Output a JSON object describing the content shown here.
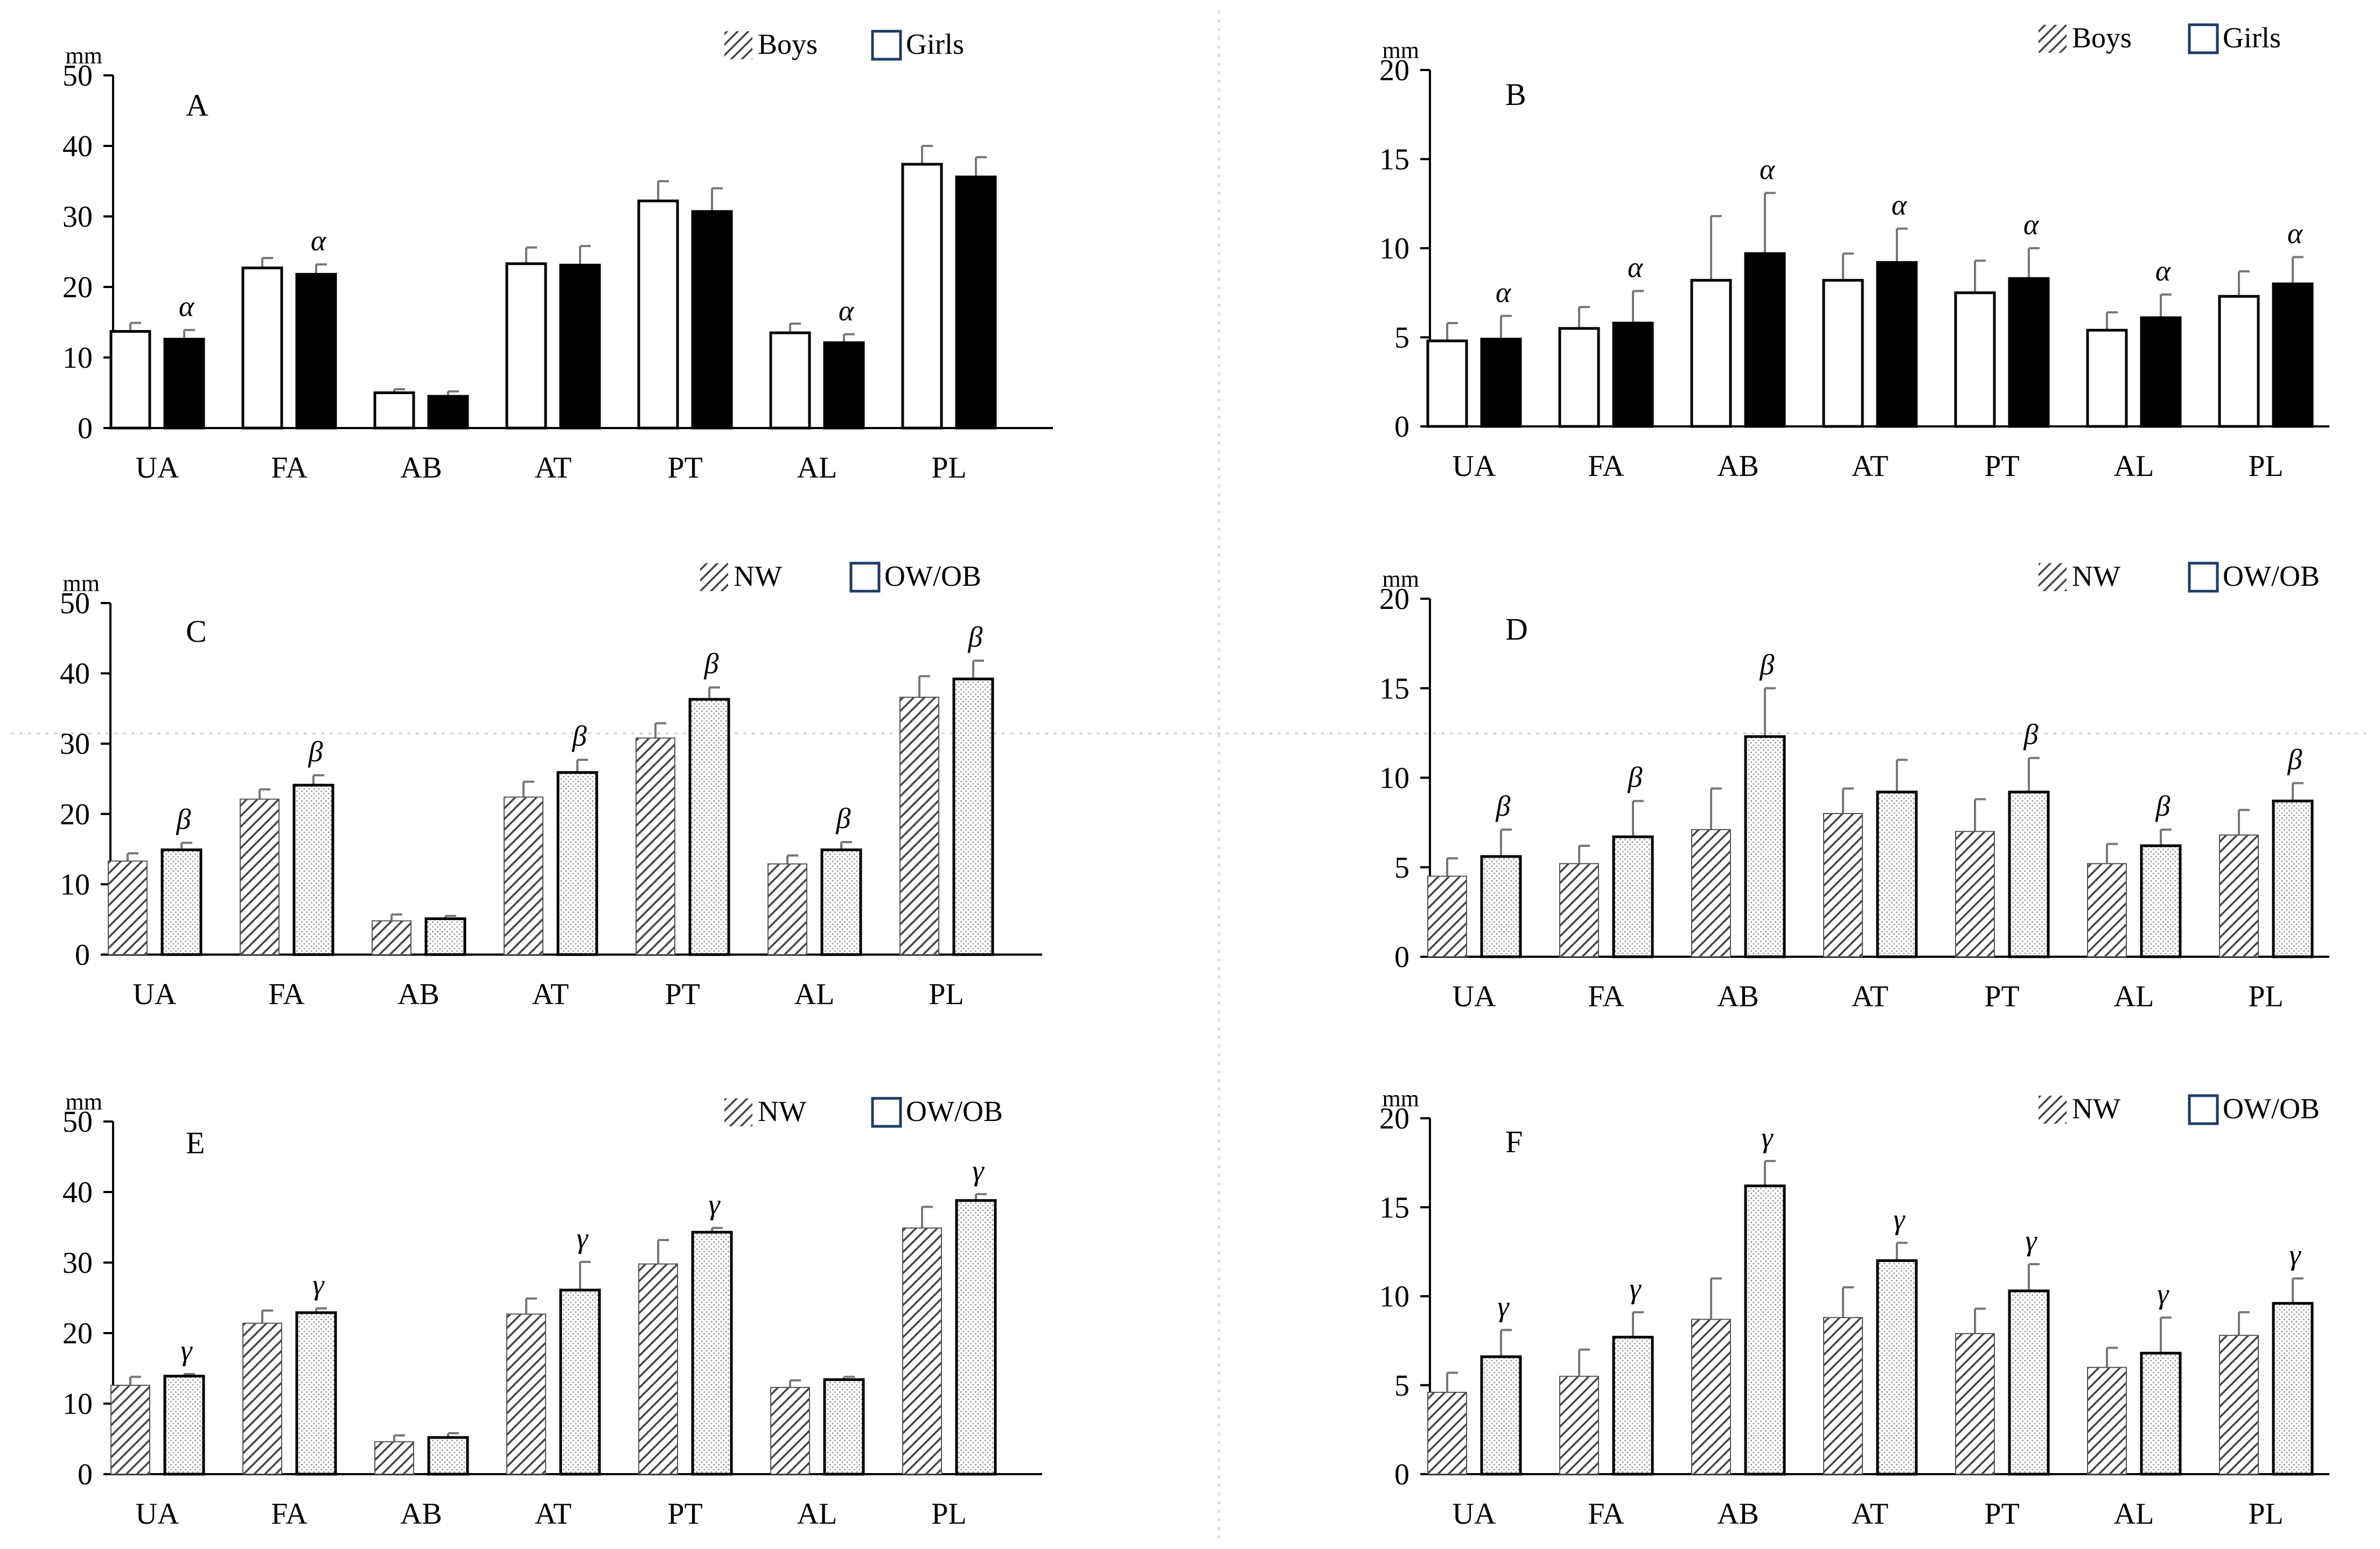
{
  "colors": {
    "axis": "#000000",
    "error_bar": "#777777",
    "bar_fill": "#ffffff",
    "bar_black": "#000000",
    "legend_box_border": "#1f3b66",
    "hatch_stroke": "#444444",
    "dots": "#9a9a9a"
  },
  "chart_data": [
    {
      "panel": "A",
      "type": "bar",
      "unit": "mm",
      "ylim": [
        0,
        50
      ],
      "yticks": [
        0,
        10,
        20,
        30,
        40,
        50
      ],
      "categories": [
        "UA",
        "FA",
        "AB",
        "AT",
        "PT",
        "AL",
        "PL"
      ],
      "series": [
        {
          "name": "Boys",
          "style": "white",
          "legend_style": "hatch",
          "values": [
            13.7,
            22.7,
            5.0,
            23.3,
            32.2,
            13.5,
            37.4
          ],
          "errors": [
            1.2,
            1.4,
            0.5,
            2.3,
            2.8,
            1.3,
            2.6
          ]
        },
        {
          "name": "Girls",
          "style": "black",
          "legend_style": "box",
          "values": [
            12.6,
            21.8,
            4.5,
            23.1,
            30.7,
            12.1,
            35.6
          ],
          "errors": [
            1.3,
            1.4,
            0.7,
            2.7,
            3.3,
            1.2,
            2.8
          ]
        }
      ],
      "annotations": [
        {
          "symbol": "α",
          "category": "UA",
          "series": 1
        },
        {
          "symbol": "α",
          "category": "FA",
          "series": 1
        },
        {
          "symbol": "α",
          "category": "AL",
          "series": 1
        }
      ]
    },
    {
      "panel": "B",
      "type": "bar",
      "unit": "mm",
      "ylim": [
        0,
        20
      ],
      "yticks": [
        0,
        5,
        10,
        15,
        20
      ],
      "categories": [
        "UA",
        "FA",
        "AB",
        "AT",
        "PT",
        "AL",
        "PL"
      ],
      "series": [
        {
          "name": "Boys",
          "style": "white",
          "legend_style": "hatch",
          "values": [
            4.8,
            5.5,
            8.2,
            8.2,
            7.5,
            5.4,
            7.3
          ],
          "errors": [
            1.0,
            1.2,
            3.6,
            1.5,
            1.8,
            1.0,
            1.4
          ]
        },
        {
          "name": "Girls",
          "style": "black",
          "legend_style": "box",
          "values": [
            4.9,
            5.8,
            9.7,
            9.2,
            8.3,
            6.1,
            8.0
          ],
          "errors": [
            1.3,
            1.8,
            3.4,
            1.9,
            1.7,
            1.3,
            1.5
          ]
        }
      ],
      "annotations": [
        {
          "symbol": "α",
          "category": "UA",
          "series": 1
        },
        {
          "symbol": "α",
          "category": "FA",
          "series": 1
        },
        {
          "symbol": "α",
          "category": "AB",
          "series": 1
        },
        {
          "symbol": "α",
          "category": "AT",
          "series": 1
        },
        {
          "symbol": "α",
          "category": "PT",
          "series": 1
        },
        {
          "symbol": "α",
          "category": "AL",
          "series": 1
        },
        {
          "symbol": "α",
          "category": "PL",
          "series": 1
        }
      ]
    },
    {
      "panel": "C",
      "type": "bar",
      "unit": "mm",
      "ylim": [
        0,
        50
      ],
      "yticks": [
        0,
        10,
        20,
        30,
        40,
        50
      ],
      "categories": [
        "UA",
        "FA",
        "AB",
        "AT",
        "PT",
        "AL",
        "PL"
      ],
      "series": [
        {
          "name": "NW",
          "style": "hatch",
          "legend_style": "hatch",
          "values": [
            13.3,
            22.1,
            4.8,
            22.4,
            30.8,
            12.9,
            36.6
          ],
          "errors": [
            1.1,
            1.4,
            0.9,
            2.2,
            2.1,
            1.2,
            3.0
          ]
        },
        {
          "name": "OW/OB",
          "style": "dots",
          "legend_style": "box",
          "values": [
            14.9,
            24.1,
            5.1,
            25.9,
            36.3,
            14.9,
            39.2
          ],
          "errors": [
            1.0,
            1.4,
            0.4,
            1.8,
            1.7,
            1.1,
            2.6
          ]
        }
      ],
      "annotations": [
        {
          "symbol": "β",
          "category": "UA",
          "series": 1
        },
        {
          "symbol": "β",
          "category": "FA",
          "series": 1
        },
        {
          "symbol": "β",
          "category": "AT",
          "series": 1
        },
        {
          "symbol": "β",
          "category": "PT",
          "series": 1
        },
        {
          "symbol": "β",
          "category": "AL",
          "series": 1
        },
        {
          "symbol": "β",
          "category": "PL",
          "series": 1
        }
      ]
    },
    {
      "panel": "D",
      "type": "bar",
      "unit": "mm",
      "ylim": [
        0,
        20
      ],
      "yticks": [
        0,
        5,
        10,
        15,
        20
      ],
      "categories": [
        "UA",
        "FA",
        "AB",
        "AT",
        "PT",
        "AL",
        "PL"
      ],
      "series": [
        {
          "name": "NW",
          "style": "hatch",
          "legend_style": "hatch",
          "values": [
            4.5,
            5.2,
            7.1,
            8.0,
            7.0,
            5.2,
            6.8
          ],
          "errors": [
            1.0,
            1.0,
            2.3,
            1.4,
            1.8,
            1.1,
            1.4
          ]
        },
        {
          "name": "OW/OB",
          "style": "dots",
          "legend_style": "box",
          "values": [
            5.6,
            6.7,
            12.3,
            9.2,
            9.2,
            6.2,
            8.7
          ],
          "errors": [
            1.5,
            2.0,
            2.7,
            1.8,
            1.9,
            0.9,
            1.0
          ]
        }
      ],
      "annotations": [
        {
          "symbol": "β",
          "category": "UA",
          "series": 1
        },
        {
          "symbol": "β",
          "category": "FA",
          "series": 1
        },
        {
          "symbol": "β",
          "category": "AB",
          "series": 1
        },
        {
          "symbol": "β",
          "category": "PT",
          "series": 1
        },
        {
          "symbol": "β",
          "category": "AL",
          "series": 1
        },
        {
          "symbol": "β",
          "category": "PL",
          "series": 1
        }
      ]
    },
    {
      "panel": "E",
      "type": "bar",
      "unit": "mm",
      "ylim": [
        0,
        50
      ],
      "yticks": [
        0,
        10,
        20,
        30,
        40,
        50
      ],
      "categories": [
        "UA",
        "FA",
        "AB",
        "AT",
        "PT",
        "AL",
        "PL"
      ],
      "series": [
        {
          "name": "NW",
          "style": "hatch",
          "legend_style": "hatch",
          "values": [
            12.6,
            21.4,
            4.6,
            22.7,
            29.8,
            12.3,
            34.9
          ],
          "errors": [
            1.2,
            1.8,
            0.9,
            2.2,
            3.4,
            1.0,
            3.0
          ]
        },
        {
          "name": "OW/OB",
          "style": "dots",
          "legend_style": "box",
          "values": [
            13.9,
            22.9,
            5.2,
            26.1,
            34.3,
            13.4,
            38.8
          ],
          "errors": [
            0.3,
            0.6,
            0.6,
            4.0,
            0.6,
            0.4,
            0.9
          ]
        }
      ],
      "annotations": [
        {
          "symbol": "γ",
          "category": "UA",
          "series": 1
        },
        {
          "symbol": "γ",
          "category": "FA",
          "series": 1
        },
        {
          "symbol": "γ",
          "category": "AT",
          "series": 1
        },
        {
          "symbol": "γ",
          "category": "PT",
          "series": 1
        },
        {
          "symbol": "γ",
          "category": "PL",
          "series": 1
        }
      ]
    },
    {
      "panel": "F",
      "type": "bar",
      "unit": "mm",
      "ylim": [
        0,
        20
      ],
      "yticks": [
        0,
        5,
        10,
        15,
        20
      ],
      "categories": [
        "UA",
        "FA",
        "AB",
        "AT",
        "PT",
        "AL",
        "PL"
      ],
      "series": [
        {
          "name": "NW",
          "style": "hatch",
          "legend_style": "hatch",
          "values": [
            4.6,
            5.5,
            8.7,
            8.8,
            7.9,
            6.0,
            7.8
          ],
          "errors": [
            1.1,
            1.5,
            2.3,
            1.7,
            1.4,
            1.1,
            1.3
          ]
        },
        {
          "name": "OW/OB",
          "style": "dots",
          "legend_style": "box",
          "values": [
            6.6,
            7.7,
            16.2,
            12.0,
            10.3,
            6.8,
            9.6
          ],
          "errors": [
            1.5,
            1.4,
            1.4,
            1.0,
            1.5,
            2.0,
            1.4
          ]
        }
      ],
      "annotations": [
        {
          "symbol": "γ",
          "category": "UA",
          "series": 1
        },
        {
          "symbol": "γ",
          "category": "FA",
          "series": 1
        },
        {
          "symbol": "γ",
          "category": "AB",
          "series": 1
        },
        {
          "symbol": "γ",
          "category": "AT",
          "series": 1
        },
        {
          "symbol": "γ",
          "category": "PT",
          "series": 1
        },
        {
          "symbol": "γ",
          "category": "AL",
          "series": 1
        },
        {
          "symbol": "γ",
          "category": "PL",
          "series": 1
        }
      ]
    }
  ]
}
